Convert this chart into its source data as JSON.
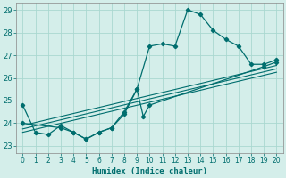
{
  "xlabel": "Humidex (Indice chaleur)",
  "bg_color": "#d4eeea",
  "line_color": "#006e6e",
  "grid_color": "#aad8d0",
  "xlim": [
    -0.5,
    20.5
  ],
  "ylim": [
    22.7,
    29.3
  ],
  "xticks": [
    0,
    1,
    2,
    3,
    4,
    5,
    6,
    7,
    8,
    9,
    10,
    11,
    12,
    13,
    14,
    15,
    16,
    17,
    18,
    19,
    20
  ],
  "yticks": [
    23,
    24,
    25,
    26,
    27,
    28,
    29
  ],
  "curve1_x": [
    0,
    1,
    2,
    3,
    4,
    5,
    6,
    7,
    8,
    9,
    10,
    11,
    12,
    13,
    14,
    15,
    16,
    17,
    18,
    19,
    20
  ],
  "curve1_y": [
    24.8,
    23.6,
    23.5,
    23.9,
    23.6,
    23.3,
    23.6,
    23.8,
    24.4,
    25.5,
    27.4,
    27.5,
    27.4,
    29.0,
    28.8,
    28.1,
    27.7,
    27.4,
    26.6,
    26.6,
    26.8
  ],
  "curve2_x": [
    0,
    3,
    4,
    5,
    6,
    7,
    8,
    9,
    9.5,
    10,
    19,
    20
  ],
  "curve2_y": [
    24.0,
    23.8,
    23.6,
    23.3,
    23.6,
    23.8,
    24.5,
    25.5,
    24.3,
    24.8,
    26.5,
    26.7
  ],
  "linear_lines": [
    {
      "x": [
        0,
        20
      ],
      "y": [
        23.9,
        26.55
      ]
    },
    {
      "x": [
        0,
        20
      ],
      "y": [
        23.75,
        26.4
      ]
    },
    {
      "x": [
        0,
        20
      ],
      "y": [
        23.6,
        26.25
      ]
    }
  ]
}
